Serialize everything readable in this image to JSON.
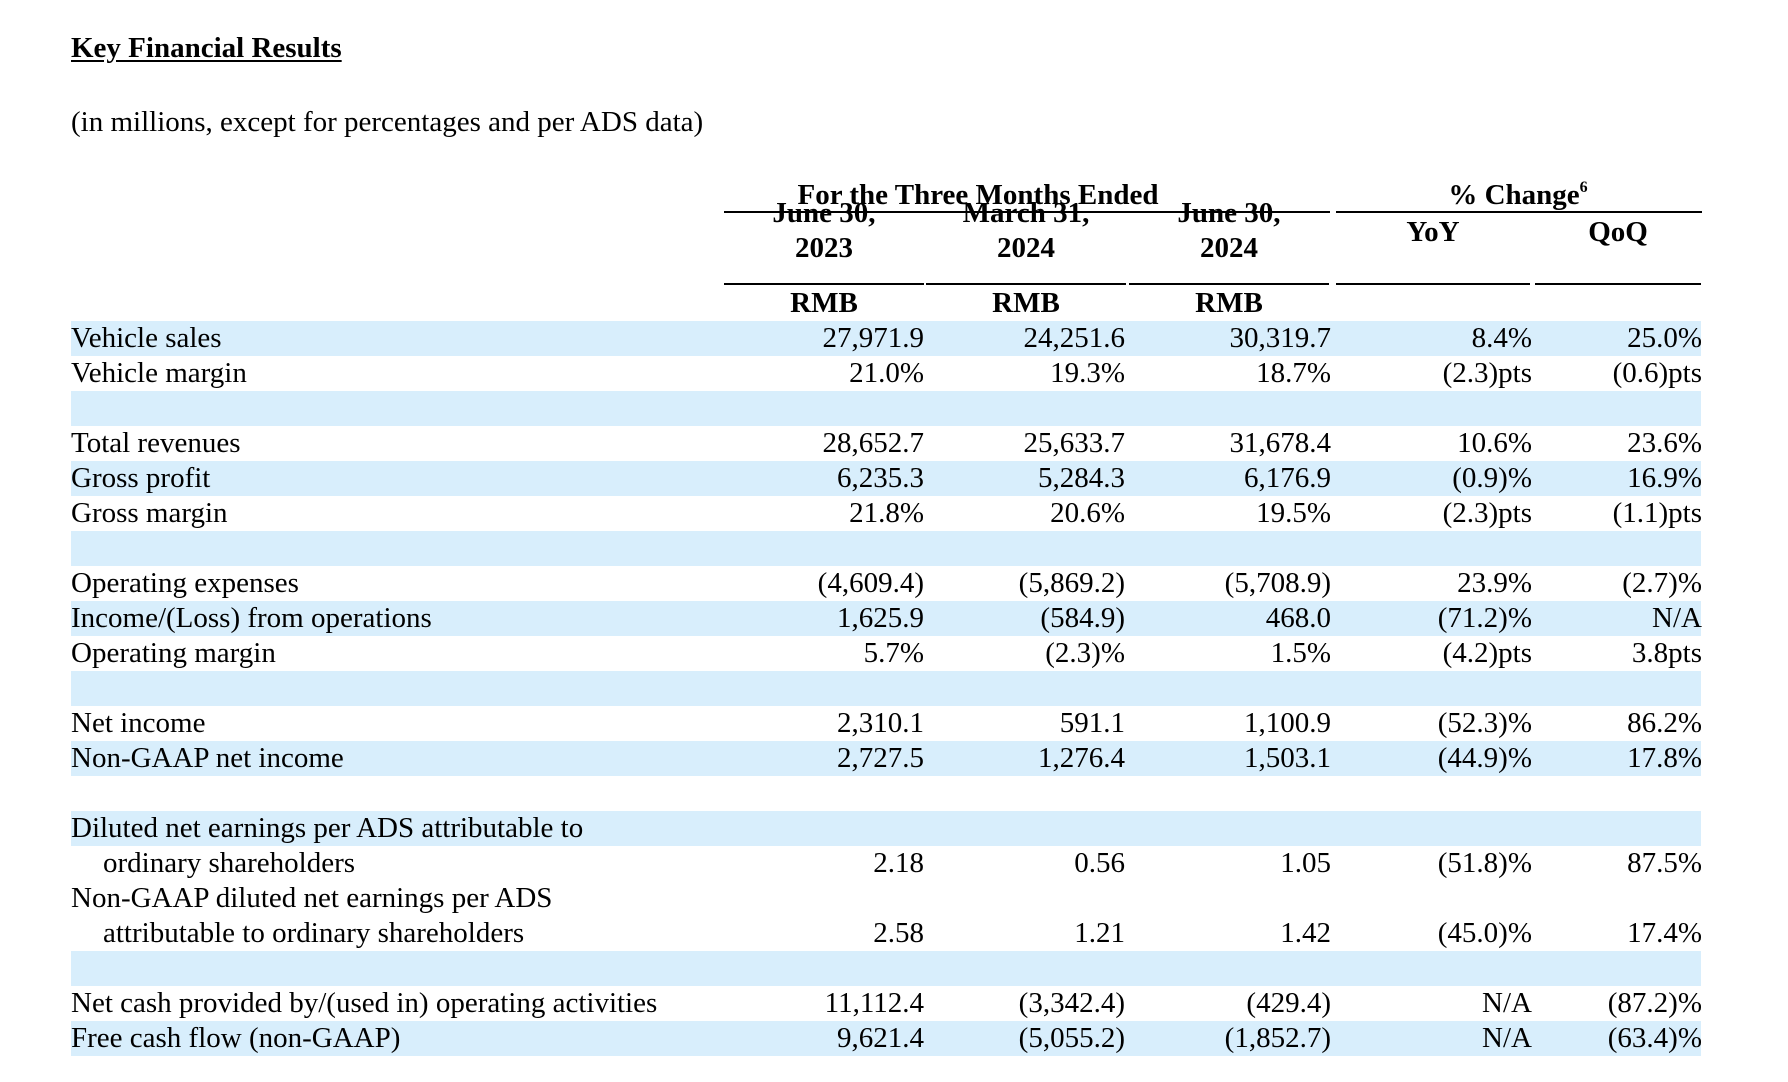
{
  "title": "Key Financial Results",
  "subtitle": "(in millions, except for percentages and per ADS data)",
  "header": {
    "period_group": "For the Three Months Ended",
    "change_group": "% Change",
    "change_footnote": "6",
    "columns": [
      {
        "line1": "June 30,",
        "line2": "2023",
        "unit": "RMB"
      },
      {
        "line1": "March 31,",
        "line2": "2024",
        "unit": "RMB"
      },
      {
        "line1": "June 30,",
        "line2": "2024",
        "unit": "RMB"
      },
      {
        "line1": "YoY",
        "line2": "",
        "unit": ""
      },
      {
        "line1": "QoQ",
        "line2": "",
        "unit": ""
      }
    ]
  },
  "rows": [
    {
      "label": "Vehicle sales",
      "values": [
        "27,971.9",
        "24,251.6",
        "30,319.7",
        "8.4%",
        "25.0%"
      ]
    },
    {
      "label": "Vehicle margin",
      "values": [
        "21.0%",
        "19.3%",
        "18.7%",
        "(2.3)pts",
        "(0.6)pts"
      ]
    },
    {
      "label": "Total revenues",
      "values": [
        "28,652.7",
        "25,633.7",
        "31,678.4",
        "10.6%",
        "23.6%"
      ]
    },
    {
      "label": "Gross profit",
      "values": [
        "6,235.3",
        "5,284.3",
        "6,176.9",
        "(0.9)%",
        "16.9%"
      ]
    },
    {
      "label": "Gross margin",
      "values": [
        "21.8%",
        "20.6%",
        "19.5%",
        "(2.3)pts",
        "(1.1)pts"
      ]
    },
    {
      "label": "Operating expenses",
      "values": [
        "(4,609.4)",
        "(5,869.2)",
        "(5,708.9)",
        "23.9%",
        "(2.7)%"
      ]
    },
    {
      "label": "Income/(Loss) from operations",
      "values": [
        "1,625.9",
        "(584.9)",
        "468.0",
        "(71.2)%",
        "N/A"
      ]
    },
    {
      "label": "Operating margin",
      "values": [
        "5.7%",
        "(2.3)%",
        "1.5%",
        "(4.2)pts",
        "3.8pts"
      ]
    },
    {
      "label": "Net income",
      "values": [
        "2,310.1",
        "591.1",
        "1,100.9",
        "(52.3)%",
        "86.2%"
      ]
    },
    {
      "label": "Non-GAAP net income",
      "values": [
        "2,727.5",
        "1,276.4",
        "1,503.1",
        "(44.9)%",
        "17.8%"
      ]
    },
    {
      "label": "Diluted net earnings per ADS attributable to",
      "label2": "ordinary shareholders",
      "values": [
        "2.18",
        "0.56",
        "1.05",
        "(51.8)%",
        "87.5%"
      ]
    },
    {
      "label": "Non-GAAP diluted net earnings per ADS",
      "label2": "attributable to ordinary shareholders",
      "values": [
        "2.58",
        "1.21",
        "1.42",
        "(45.0)%",
        "17.4%"
      ]
    },
    {
      "label": "Net cash provided by/(used in) operating activities",
      "values": [
        "11,112.4",
        "(3,342.4)",
        "(429.4)",
        "N/A",
        "(87.2)%"
      ]
    },
    {
      "label": "Free cash flow (non-GAAP)",
      "values": [
        "9,621.4",
        "(5,055.2)",
        "(1,852.7)",
        "N/A",
        "(63.4)%"
      ]
    }
  ]
}
